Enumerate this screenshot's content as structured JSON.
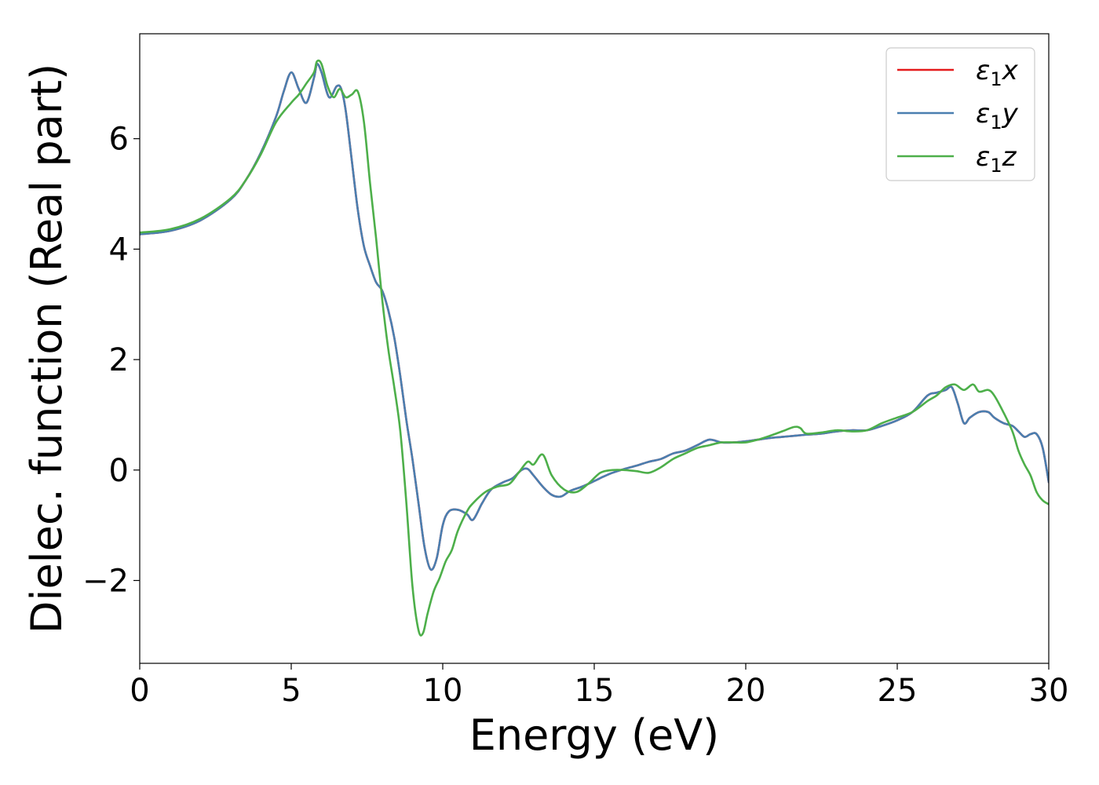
{
  "chart_data": {
    "type": "line",
    "xlabel": "Energy (eV)",
    "ylabel": "Dielec. function (Real part)",
    "xlim": [
      0,
      30
    ],
    "ylim": [
      -3.5,
      7.9
    ],
    "xticks": [
      0,
      5,
      10,
      15,
      20,
      25,
      30
    ],
    "xtick_labels": [
      "0",
      "5",
      "10",
      "15",
      "20",
      "25",
      "30"
    ],
    "yticks": [
      -2,
      0,
      2,
      4,
      6
    ],
    "ytick_labels": [
      "−2",
      "0",
      "2",
      "4",
      "6"
    ],
    "grid": false,
    "legend_position": "top-right",
    "series": [
      {
        "name": "ε₁x",
        "name_base": "ε",
        "name_sub": "1",
        "name_var": "x",
        "color": "#e41a1c",
        "x": [
          0,
          1,
          2,
          3,
          3.5,
          4,
          4.5,
          4.75,
          5,
          5.25,
          5.5,
          5.75,
          5.85,
          6.0,
          6.25,
          6.5,
          6.65,
          6.8,
          7.0,
          7.2,
          7.4,
          7.6,
          7.8,
          8.0,
          8.2,
          8.4,
          8.6,
          8.8,
          9.0,
          9.2,
          9.4,
          9.6,
          9.8,
          10.0,
          10.2,
          10.5,
          10.8,
          11.0,
          11.3,
          11.6,
          12.0,
          12.3,
          12.6,
          12.8,
          13.0,
          13.3,
          13.6,
          13.9,
          14.2,
          14.6,
          15.0,
          15.3,
          15.6,
          16.0,
          16.4,
          16.8,
          17.2,
          17.6,
          18.0,
          18.4,
          18.8,
          19.2,
          19.6,
          20.0,
          20.4,
          20.8,
          21.2,
          21.6,
          22.0,
          22.5,
          23.0,
          23.5,
          24.0,
          24.5,
          25.0,
          25.5,
          26.0,
          26.3,
          26.6,
          26.8,
          27.0,
          27.2,
          27.4,
          27.7,
          28.0,
          28.2,
          28.5,
          28.8,
          29.0,
          29.2,
          29.4,
          29.6,
          29.8,
          30.0
        ],
        "y": [
          4.27,
          4.33,
          4.52,
          4.9,
          5.25,
          5.75,
          6.4,
          6.85,
          7.2,
          6.9,
          6.65,
          7.1,
          7.35,
          7.2,
          6.75,
          6.95,
          6.9,
          6.5,
          5.6,
          4.7,
          4.05,
          3.7,
          3.4,
          3.25,
          2.9,
          2.4,
          1.7,
          0.9,
          0.2,
          -0.6,
          -1.4,
          -1.8,
          -1.6,
          -1.0,
          -0.75,
          -0.72,
          -0.8,
          -0.9,
          -0.6,
          -0.35,
          -0.22,
          -0.15,
          0.0,
          0.02,
          -0.1,
          -0.3,
          -0.45,
          -0.48,
          -0.38,
          -0.3,
          -0.2,
          -0.12,
          -0.05,
          0.02,
          0.08,
          0.15,
          0.2,
          0.3,
          0.35,
          0.45,
          0.55,
          0.5,
          0.5,
          0.52,
          0.55,
          0.58,
          0.6,
          0.62,
          0.64,
          0.66,
          0.7,
          0.72,
          0.72,
          0.8,
          0.9,
          1.05,
          1.35,
          1.4,
          1.45,
          1.5,
          1.2,
          0.85,
          0.95,
          1.05,
          1.05,
          0.95,
          0.85,
          0.8,
          0.7,
          0.6,
          0.65,
          0.65,
          0.4,
          -0.22
        ]
      },
      {
        "name": "ε₁y",
        "name_base": "ε",
        "name_sub": "1",
        "name_var": "y",
        "color": "#4a7fb0",
        "x": [
          0,
          1,
          2,
          3,
          3.5,
          4,
          4.5,
          4.75,
          5,
          5.25,
          5.5,
          5.75,
          5.85,
          6.0,
          6.25,
          6.5,
          6.65,
          6.8,
          7.0,
          7.2,
          7.4,
          7.6,
          7.8,
          8.0,
          8.2,
          8.4,
          8.6,
          8.8,
          9.0,
          9.2,
          9.4,
          9.6,
          9.8,
          10.0,
          10.2,
          10.5,
          10.8,
          11.0,
          11.3,
          11.6,
          12.0,
          12.3,
          12.6,
          12.8,
          13.0,
          13.3,
          13.6,
          13.9,
          14.2,
          14.6,
          15.0,
          15.3,
          15.6,
          16.0,
          16.4,
          16.8,
          17.2,
          17.6,
          18.0,
          18.4,
          18.8,
          19.2,
          19.6,
          20.0,
          20.4,
          20.8,
          21.2,
          21.6,
          22.0,
          22.5,
          23.0,
          23.5,
          24.0,
          24.5,
          25.0,
          25.5,
          26.0,
          26.3,
          26.6,
          26.8,
          27.0,
          27.2,
          27.4,
          27.7,
          28.0,
          28.2,
          28.5,
          28.8,
          29.0,
          29.2,
          29.4,
          29.6,
          29.8,
          30.0
        ],
        "y": [
          4.27,
          4.33,
          4.52,
          4.9,
          5.25,
          5.75,
          6.4,
          6.85,
          7.2,
          6.9,
          6.65,
          7.1,
          7.35,
          7.2,
          6.75,
          6.95,
          6.9,
          6.5,
          5.6,
          4.7,
          4.05,
          3.7,
          3.4,
          3.25,
          2.9,
          2.4,
          1.7,
          0.9,
          0.2,
          -0.6,
          -1.4,
          -1.8,
          -1.6,
          -1.0,
          -0.75,
          -0.72,
          -0.8,
          -0.9,
          -0.6,
          -0.35,
          -0.22,
          -0.15,
          0.0,
          0.02,
          -0.1,
          -0.3,
          -0.45,
          -0.48,
          -0.38,
          -0.3,
          -0.2,
          -0.12,
          -0.05,
          0.02,
          0.08,
          0.15,
          0.2,
          0.3,
          0.35,
          0.45,
          0.55,
          0.5,
          0.5,
          0.52,
          0.55,
          0.58,
          0.6,
          0.62,
          0.64,
          0.66,
          0.7,
          0.72,
          0.72,
          0.8,
          0.9,
          1.05,
          1.35,
          1.4,
          1.45,
          1.5,
          1.2,
          0.85,
          0.95,
          1.05,
          1.05,
          0.95,
          0.85,
          0.8,
          0.7,
          0.6,
          0.65,
          0.65,
          0.4,
          -0.22
        ]
      },
      {
        "name": "ε₁z",
        "name_base": "ε",
        "name_sub": "1",
        "name_var": "z",
        "color": "#4daf4a",
        "x": [
          0,
          1,
          2,
          3,
          3.5,
          4,
          4.5,
          5.0,
          5.25,
          5.5,
          5.75,
          5.85,
          6.0,
          6.2,
          6.4,
          6.6,
          6.8,
          7.0,
          7.2,
          7.4,
          7.6,
          7.8,
          8.0,
          8.2,
          8.4,
          8.6,
          8.8,
          9.0,
          9.2,
          9.35,
          9.5,
          9.7,
          9.9,
          10.1,
          10.3,
          10.5,
          10.8,
          11.0,
          11.4,
          11.8,
          12.2,
          12.5,
          12.8,
          13.0,
          13.3,
          13.6,
          14.0,
          14.4,
          14.8,
          15.2,
          15.6,
          16.0,
          16.4,
          16.8,
          17.2,
          17.6,
          18.0,
          18.4,
          18.8,
          19.2,
          19.6,
          20.0,
          20.4,
          20.8,
          21.2,
          21.6,
          21.8,
          22.0,
          22.5,
          23.0,
          23.5,
          24.0,
          24.5,
          25.0,
          25.5,
          26.0,
          26.3,
          26.6,
          26.9,
          27.2,
          27.5,
          27.7,
          28.0,
          28.2,
          28.5,
          28.8,
          29.0,
          29.2,
          29.4,
          29.6,
          29.8,
          30.0
        ],
        "y": [
          4.3,
          4.36,
          4.55,
          4.92,
          5.25,
          5.72,
          6.3,
          6.65,
          6.8,
          7.0,
          7.2,
          7.4,
          7.35,
          6.95,
          6.75,
          6.9,
          6.75,
          6.8,
          6.85,
          6.3,
          5.2,
          4.2,
          3.1,
          2.2,
          1.5,
          0.7,
          -0.6,
          -2.1,
          -2.9,
          -2.95,
          -2.6,
          -2.2,
          -1.95,
          -1.65,
          -1.45,
          -1.1,
          -0.75,
          -0.6,
          -0.4,
          -0.3,
          -0.25,
          -0.05,
          0.15,
          0.1,
          0.28,
          -0.1,
          -0.35,
          -0.4,
          -0.25,
          -0.05,
          0.0,
          0.0,
          -0.02,
          -0.05,
          0.05,
          0.2,
          0.3,
          0.4,
          0.45,
          0.5,
          0.5,
          0.5,
          0.55,
          0.62,
          0.7,
          0.78,
          0.76,
          0.66,
          0.68,
          0.72,
          0.7,
          0.72,
          0.85,
          0.95,
          1.05,
          1.25,
          1.35,
          1.5,
          1.55,
          1.45,
          1.55,
          1.42,
          1.45,
          1.35,
          1.05,
          0.7,
          0.35,
          0.1,
          -0.1,
          -0.4,
          -0.55,
          -0.62
        ]
      }
    ]
  }
}
